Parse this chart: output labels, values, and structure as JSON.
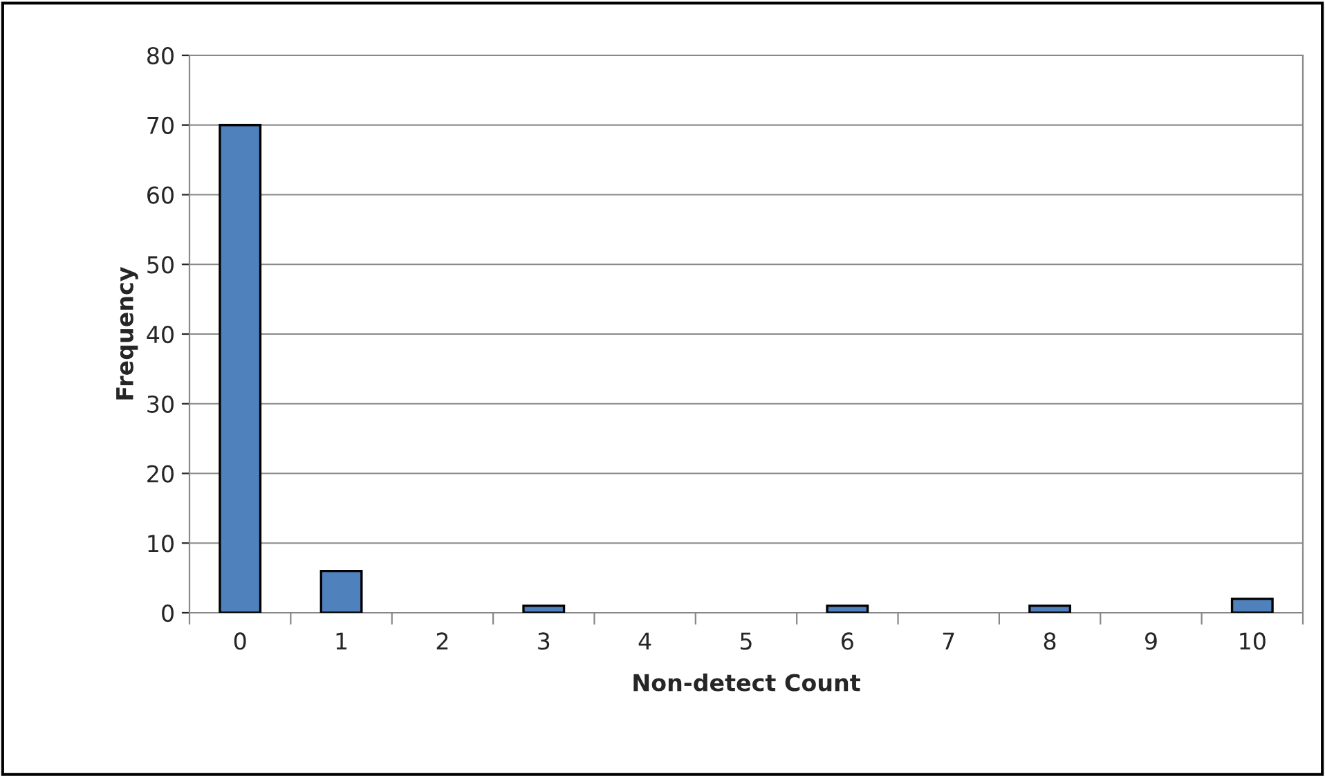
{
  "chart_data": {
    "type": "bar",
    "xlabel": "Non-detect Count",
    "ylabel": "Frequency",
    "categories": [
      "0",
      "1",
      "2",
      "3",
      "4",
      "5",
      "6",
      "7",
      "8",
      "9",
      "10"
    ],
    "series": [
      {
        "color": "#4f81bd",
        "values": [
          70,
          6,
          0,
          1,
          0,
          0,
          1,
          0,
          1,
          0,
          2
        ]
      }
    ],
    "ylim": [
      0,
      80
    ],
    "yticks": [
      0,
      10,
      20,
      30,
      40,
      50,
      60,
      70,
      80
    ],
    "grid": "y",
    "legend": false
  }
}
